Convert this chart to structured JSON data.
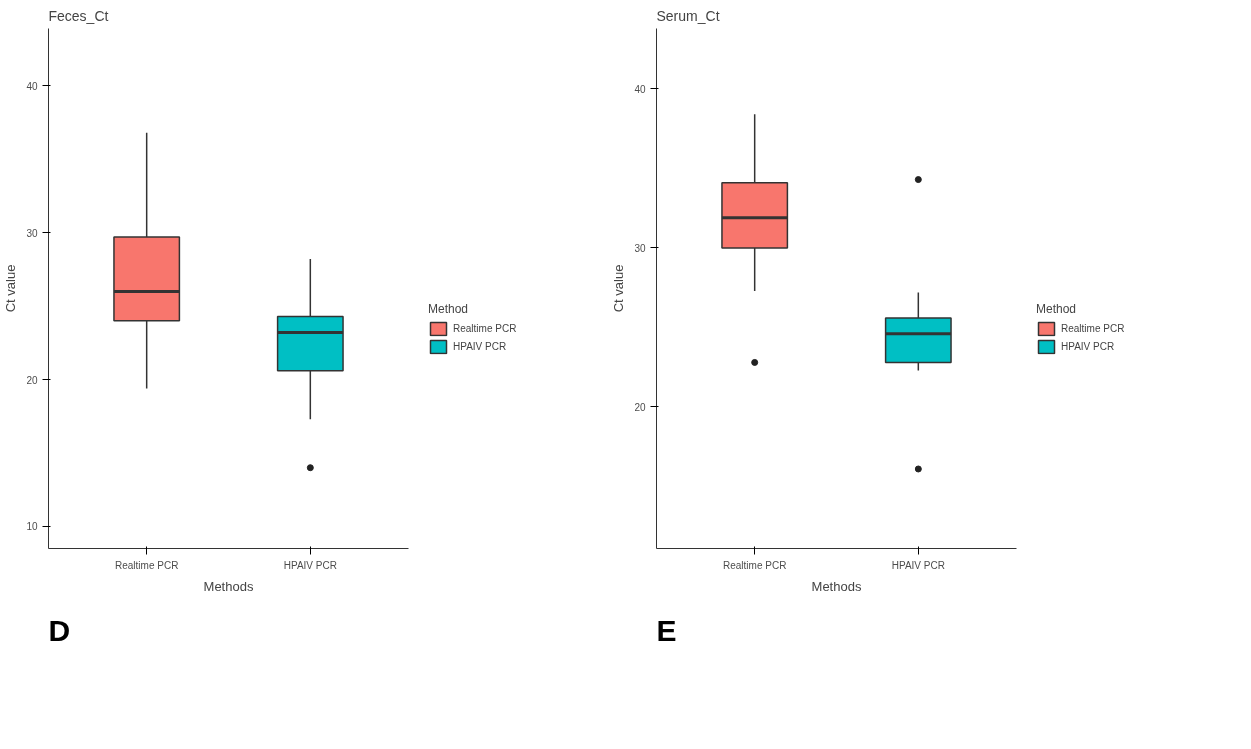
{
  "chart_data": [
    {
      "type": "box",
      "title": "Feces_Ct",
      "xlabel": "Methods",
      "ylabel": "Ct value",
      "legend_title": "Method",
      "categories": [
        "Realtime PCR",
        "HPAIV PCR"
      ],
      "series": [
        {
          "name": "Realtime PCR",
          "color": "#f8766d",
          "boxes": [
            {
              "low": 19.4,
              "q1": 24.0,
              "median": 26.0,
              "q3": 29.7,
              "high": 36.8
            },
            null
          ]
        },
        {
          "name": "HPAIV PCR",
          "color": "#00bfc4",
          "boxes": [
            null,
            {
              "low": 17.3,
              "q1": 20.6,
              "median": 23.2,
              "q3": 24.3,
              "high": 28.2,
              "outliers": [
                14.0
              ]
            }
          ]
        }
      ],
      "ylim": [
        8.5,
        43.9
      ],
      "yticks": [
        10,
        20,
        30,
        40
      ],
      "grid": false,
      "legend": "right",
      "annotations": [
        "D"
      ]
    },
    {
      "type": "box",
      "title": "Serum_Ct",
      "xlabel": "Methods",
      "ylabel": "Ct value",
      "legend_title": "Method",
      "categories": [
        "Realtime PCR",
        "HPAIV PCR"
      ],
      "series": [
        {
          "name": "Realtime PCR",
          "color": "#f8766d",
          "boxes": [
            {
              "low": 27.3,
              "q1": 30.0,
              "median": 31.9,
              "q3": 34.1,
              "high": 38.4,
              "outliers": [
                22.8
              ]
            },
            null
          ]
        },
        {
          "name": "HPAIV PCR",
          "color": "#00bfc4",
          "boxes": [
            null,
            {
              "low": 22.3,
              "q1": 22.8,
              "median": 24.6,
              "q3": 25.6,
              "high": 27.2,
              "outliers": [
                34.3,
                16.1
              ]
            }
          ]
        }
      ],
      "ylim": [
        11.1,
        43.8
      ],
      "yticks": [
        20,
        30,
        40
      ],
      "grid": false,
      "legend": "right",
      "annotations": [
        "E"
      ]
    }
  ]
}
